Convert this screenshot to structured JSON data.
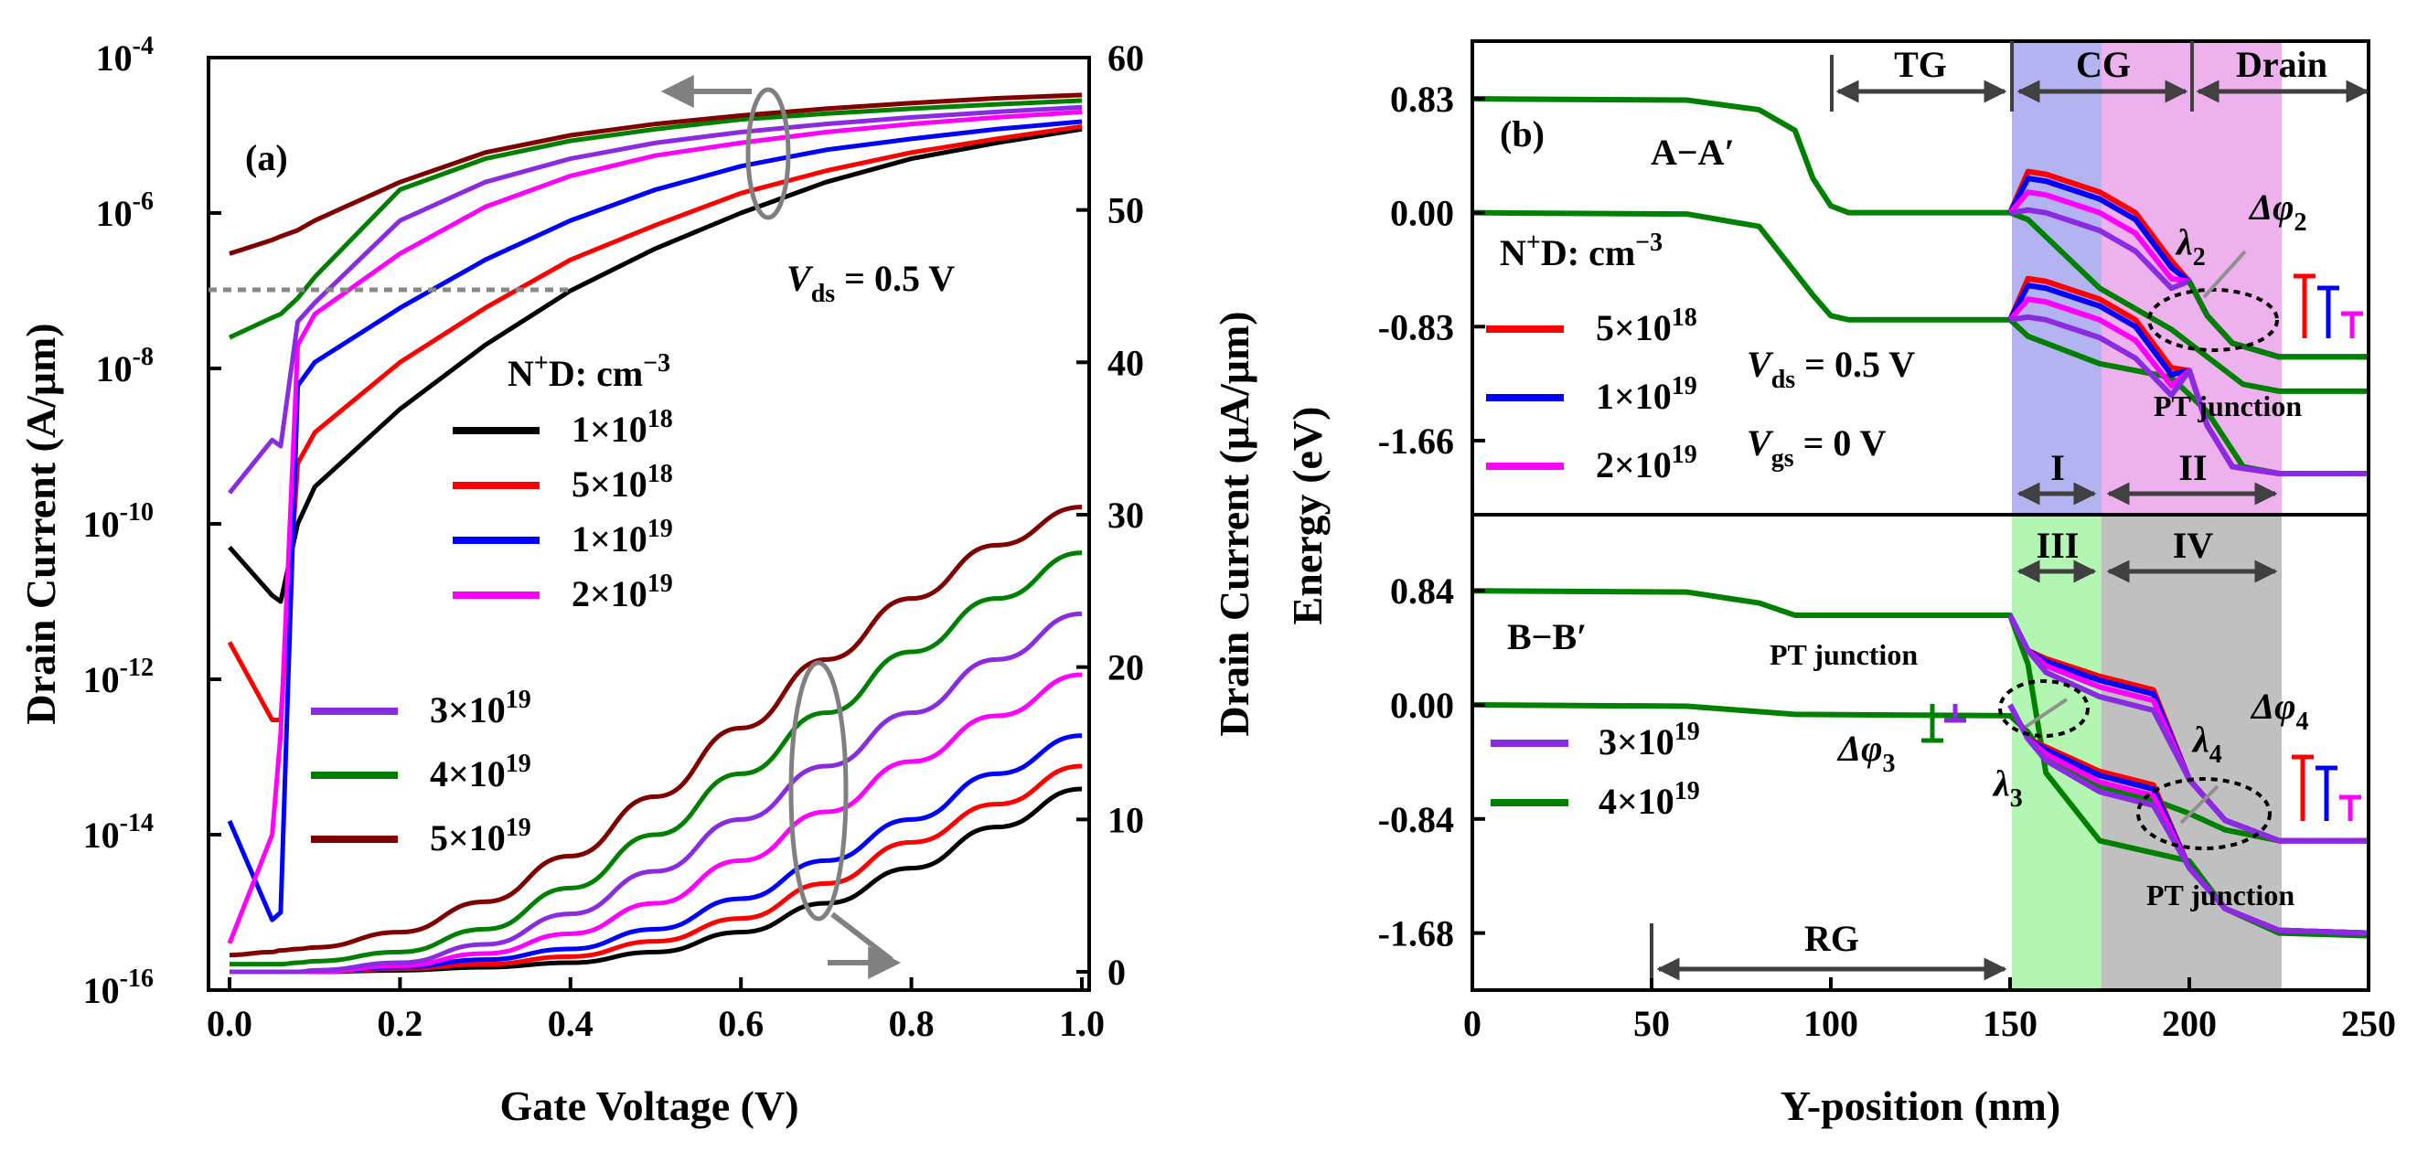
{
  "panel_a": {
    "label": "(a)",
    "xlabel": "Gate Voltage (V)",
    "ylabel_left": "Drain Current (A/μm)",
    "ylabel_right": "Drain Current (μA/μm)",
    "xticks": [
      "0.0",
      "0.2",
      "0.4",
      "0.6",
      "0.8",
      "1.0"
    ],
    "yticks_left_base": [
      "10",
      "10",
      "10",
      "10",
      "10",
      "10",
      "10"
    ],
    "yticks_left_exp": [
      "-4",
      "-6",
      "-8",
      "-10",
      "-12",
      "-14",
      "-16"
    ],
    "yticks_right": [
      "60",
      "50",
      "40",
      "30",
      "20",
      "10",
      "0"
    ],
    "vds_label": "V",
    "vds_sub": "ds",
    "vds_value": " = 0.5 V",
    "legend_title": "N",
    "legend_title_sup": "+",
    "legend_title_rest": "D: cm",
    "legend_title_exp": "−3",
    "legend_entries": [
      {
        "base": "1×10",
        "exp": "18",
        "color": "#000000"
      },
      {
        "base": "5×10",
        "exp": "18",
        "color": "#ff0000"
      },
      {
        "base": "1×10",
        "exp": "19",
        "color": "#0000ff"
      },
      {
        "base": "2×10",
        "exp": "19",
        "color": "#ff00ff"
      },
      {
        "base": "3×10",
        "exp": "19",
        "color": "#8a2be2"
      },
      {
        "base": "4×10",
        "exp": "19",
        "color": "#008000"
      },
      {
        "base": "5×10",
        "exp": "19",
        "color": "#800000"
      }
    ]
  },
  "panel_b": {
    "label": "(b)",
    "xlabel": "Y-position (nm)",
    "ylabel": "Energy (eV)",
    "xticks": [
      "0",
      "50",
      "100",
      "150",
      "200",
      "250"
    ],
    "top_yticks": [
      "0.83",
      "0.00",
      "-0.83",
      "-1.66"
    ],
    "bottom_yticks": [
      "0.84",
      "0.00",
      "-0.84",
      "-1.68"
    ],
    "section_top": "A−A′",
    "section_bottom": "B−B′",
    "regions_top": [
      "TG",
      "CG",
      "Drain"
    ],
    "regions_mid_top": [
      "I",
      "II"
    ],
    "regions_mid_bottom": [
      "III",
      "IV"
    ],
    "region_rg": "RG",
    "legend_title": "N",
    "legend_title_sup": "+",
    "legend_title_rest": "D: cm",
    "legend_title_exp": "−3",
    "vds_label": "V",
    "vds_sub": "ds",
    "vds_value": " = 0.5 V",
    "vgs_label": "V",
    "vgs_sub": "gs",
    "vgs_value": " = 0 V",
    "pt_junction": "PT junction",
    "lambda": "λ",
    "lambda_subs": [
      "2",
      "3",
      "4"
    ],
    "dphi": "Δφ",
    "dphi_subs": [
      "2",
      "3",
      "4"
    ],
    "legend_top": [
      {
        "base": "5×10",
        "exp": "18",
        "color": "#ff0000"
      },
      {
        "base": "1×10",
        "exp": "19",
        "color": "#0000ff"
      },
      {
        "base": "2×10",
        "exp": "19",
        "color": "#ff00ff"
      }
    ],
    "legend_bottom": [
      {
        "base": "3×10",
        "exp": "19",
        "color": "#8a2be2"
      },
      {
        "base": "4×10",
        "exp": "19",
        "color": "#008000"
      }
    ]
  },
  "chart_data": [
    {
      "type": "line",
      "title": "(a)",
      "xlabel": "Gate Voltage (V)",
      "ylabel": "Drain Current (A/μm)",
      "y2label": "Drain Current (μA/μm)",
      "xlim": [
        0,
        1.0
      ],
      "ylim": [
        1e-16,
        0.0001
      ],
      "yscale": "log",
      "y2lim": [
        0,
        60
      ],
      "x": [
        0,
        0.05,
        0.06,
        0.08,
        0.1,
        0.2,
        0.3,
        0.4,
        0.5,
        0.6,
        0.7,
        0.8,
        0.9,
        1.0
      ],
      "series_log": [
        {
          "name": "1×10^18",
          "values": [
            5e-11,
            1.2e-11,
            1e-11,
            1e-10,
            3e-10,
            3e-09,
            2e-08,
            1e-07,
            3.5e-07,
            1e-06,
            2.5e-06,
            5e-06,
            8e-06,
            1.2e-05
          ]
        },
        {
          "name": "5×10^18",
          "values": [
            3e-12,
            3e-13,
            3e-13,
            6e-10,
            1.5e-09,
            1.2e-08,
            6e-08,
            2.5e-07,
            7e-07,
            1.8e-06,
            3.5e-06,
            6e-06,
            9e-06,
            1.3e-05
          ]
        },
        {
          "name": "1×10^19",
          "values": [
            1.5e-14,
            8e-16,
            1e-15,
            6e-09,
            1.2e-08,
            6e-08,
            2.5e-07,
            8e-07,
            2e-06,
            4e-06,
            6.5e-06,
            9e-06,
            1.2e-05,
            1.5e-05
          ]
        },
        {
          "name": "2×10^19",
          "values": [
            4e-16,
            1e-14,
            2e-13,
            2e-08,
            5e-08,
            3e-07,
            1.2e-06,
            3e-06,
            5.5e-06,
            8e-06,
            1.1e-05,
            1.4e-05,
            1.7e-05,
            2e-05
          ]
        },
        {
          "name": "3×10^19",
          "values": [
            2.5e-10,
            1.2e-09,
            1e-09,
            4e-08,
            7e-08,
            8e-07,
            2.5e-06,
            5e-06,
            8e-06,
            1.1e-05,
            1.4e-05,
            1.7e-05,
            2e-05,
            2.3e-05
          ]
        },
        {
          "name": "4×10^19",
          "values": [
            2.5e-08,
            4.5e-08,
            5e-08,
            8e-08,
            1.5e-07,
            2e-06,
            5e-06,
            8.5e-06,
            1.2e-05,
            1.6e-05,
            1.9e-05,
            2.2e-05,
            2.5e-05,
            2.8e-05
          ]
        },
        {
          "name": "5×10^19",
          "values": [
            3e-07,
            4.5e-07,
            5e-07,
            6e-07,
            8e-07,
            2.5e-06,
            6e-06,
            1e-05,
            1.4e-05,
            1.8e-05,
            2.2e-05,
            2.6e-05,
            3e-05,
            3.3e-05
          ]
        }
      ],
      "series_linear": [
        {
          "name": "1×10^18",
          "values": [
            0,
            0,
            0,
            0,
            0,
            0.1,
            0.3,
            0.6,
            1.3,
            2.6,
            4.5,
            6.8,
            9.5,
            12
          ]
        },
        {
          "name": "5×10^18",
          "values": [
            0,
            0,
            0,
            0,
            0,
            0.2,
            0.5,
            1.0,
            2.0,
            3.5,
            5.8,
            8.5,
            11,
            13.5
          ]
        },
        {
          "name": "1×10^19",
          "values": [
            0,
            0,
            0,
            0,
            0,
            0.3,
            0.8,
            1.5,
            2.8,
            4.8,
            7.3,
            10,
            13,
            15.5
          ]
        },
        {
          "name": "2×10^19",
          "values": [
            0,
            0,
            0,
            0,
            0,
            0.4,
            1.2,
            2.5,
            4.5,
            7.3,
            10.5,
            13.8,
            16.8,
            19.5
          ]
        },
        {
          "name": "3×10^19",
          "values": [
            0,
            0,
            0,
            0,
            0.1,
            0.6,
            1.8,
            3.8,
            6.6,
            10,
            13.5,
            17,
            20.5,
            23.5
          ]
        },
        {
          "name": "4×10^19",
          "values": [
            0.5,
            0.5,
            0.5,
            0.6,
            0.7,
            1.3,
            2.8,
            5.5,
            9,
            13,
            17,
            21,
            24.5,
            27.5
          ]
        },
        {
          "name": "5×10^19",
          "values": [
            1.1,
            1.3,
            1.4,
            1.5,
            1.6,
            2.6,
            4.6,
            7.6,
            11.5,
            16,
            20.5,
            24.5,
            28,
            30.5
          ]
        }
      ]
    },
    {
      "type": "line",
      "title": "(b)",
      "xlabel": "Y-position (nm)",
      "ylabel": "Energy (eV)",
      "xlim": [
        0,
        250
      ],
      "panels": [
        "A−A′",
        "B−B′"
      ],
      "top_ylim": [
        -2.2,
        1.25
      ],
      "bottom_ylim": [
        -2.1,
        1.4
      ],
      "regions_nm": {
        "TG": [
          100,
          150
        ],
        "CG": [
          150,
          200
        ],
        "Drain": [
          200,
          250
        ],
        "I": [
          150,
          175
        ],
        "II": [
          175,
          225
        ],
        "III": [
          150,
          175
        ],
        "IV": [
          175,
          225
        ],
        "RG": [
          50,
          150
        ]
      },
      "series": [
        {
          "name": "5×10^18",
          "color": "#ff0000"
        },
        {
          "name": "1×10^19",
          "color": "#0000ff"
        },
        {
          "name": "2×10^19",
          "color": "#ff00ff"
        },
        {
          "name": "3×10^19",
          "color": "#8a2be2"
        },
        {
          "name": "4×10^19",
          "color": "#008000"
        }
      ]
    }
  ]
}
